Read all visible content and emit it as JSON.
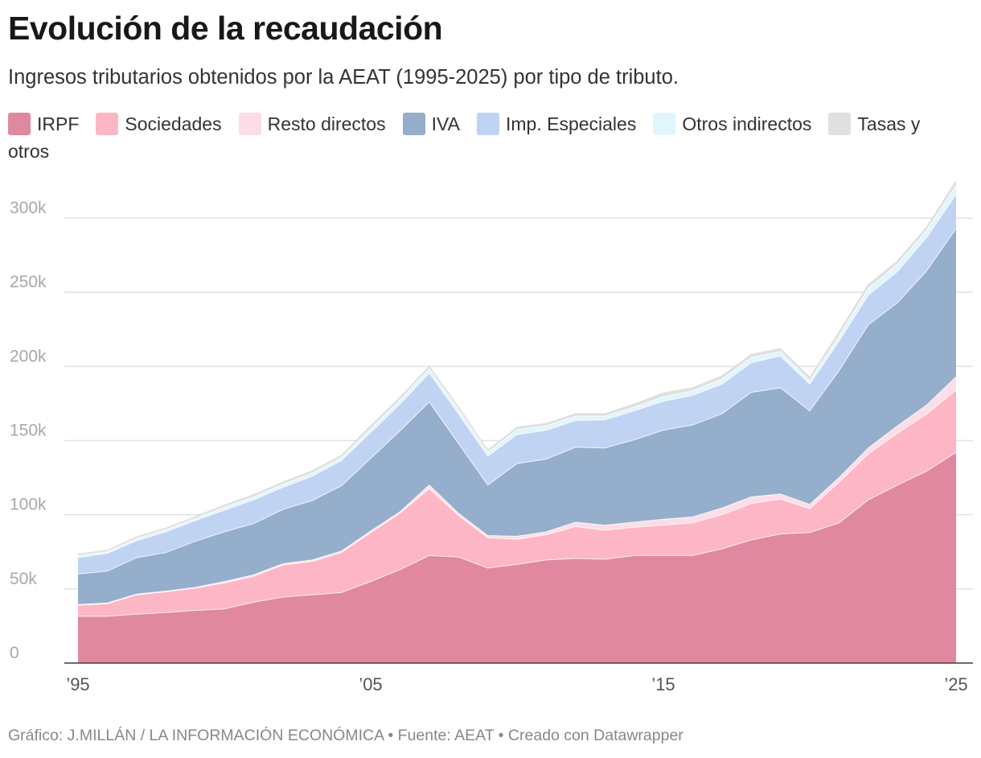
{
  "chart_data": {
    "type": "area",
    "stacked": true,
    "title": "Evolución de la recaudación",
    "subtitle": "Ingresos tributarios obtenidos por la AEAT (1995-2025) por tipo de tributo.",
    "x": [
      1995,
      1996,
      1997,
      1998,
      1999,
      2000,
      2001,
      2002,
      2003,
      2004,
      2005,
      2006,
      2007,
      2008,
      2009,
      2010,
      2011,
      2012,
      2013,
      2014,
      2015,
      2016,
      2017,
      2018,
      2019,
      2020,
      2021,
      2022,
      2023,
      2024,
      2025
    ],
    "x_ticks": [
      {
        "value": 1995,
        "label": "’95"
      },
      {
        "value": 2005,
        "label": "’05"
      },
      {
        "value": 2015,
        "label": "’15"
      },
      {
        "value": 2025,
        "label": "’25"
      }
    ],
    "y_ticks": [
      {
        "value": 0,
        "label": "0"
      },
      {
        "value": 50000,
        "label": "50k"
      },
      {
        "value": 100000,
        "label": "100k"
      },
      {
        "value": 150000,
        "label": "150k"
      },
      {
        "value": 200000,
        "label": "200k"
      },
      {
        "value": 250000,
        "label": "250k"
      },
      {
        "value": 300000,
        "label": "300k"
      }
    ],
    "ylim": [
      0,
      330000
    ],
    "xlim": [
      1995,
      2025
    ],
    "grid": true,
    "legend_position": "top",
    "series": [
      {
        "name": "IRPF",
        "color": "#e0889f",
        "values": [
          31500,
          31500,
          33000,
          34000,
          35500,
          36500,
          41000,
          44500,
          46000,
          47500,
          55000,
          63000,
          72500,
          71500,
          64000,
          66500,
          69500,
          70500,
          70000,
          72500,
          72500,
          72500,
          77000,
          83000,
          87000,
          88000,
          94500,
          110000,
          120000,
          129500,
          142000
        ]
      },
      {
        "name": "Sociedades",
        "color": "#fdb6c5",
        "values": [
          7500,
          8500,
          13000,
          14000,
          15000,
          17500,
          17500,
          21500,
          22500,
          27000,
          33000,
          38000,
          45000,
          28000,
          20500,
          17000,
          17000,
          21500,
          19500,
          19000,
          20500,
          22000,
          23000,
          24500,
          23500,
          16000,
          27500,
          31000,
          35000,
          38500,
          42000
        ]
      },
      {
        "name": "Resto directos",
        "color": "#fddde7",
        "values": [
          500,
          500,
          500,
          500,
          500,
          1000,
          1000,
          1000,
          1000,
          1000,
          1000,
          1000,
          2500,
          1500,
          1500,
          2000,
          2000,
          3000,
          3500,
          3500,
          4000,
          4000,
          4500,
          4500,
          3500,
          3000,
          3000,
          4000,
          5000,
          6000,
          9000
        ]
      },
      {
        "name": "IVA",
        "color": "#94aecb",
        "values": [
          20500,
          21500,
          24500,
          26000,
          31000,
          33500,
          34500,
          36500,
          40000,
          44000,
          49000,
          54500,
          56000,
          47000,
          34000,
          49000,
          49000,
          50500,
          52000,
          55500,
          60000,
          62000,
          63500,
          70500,
          71500,
          63000,
          72000,
          83000,
          83000,
          90500,
          100000
        ]
      },
      {
        "name": "Imp. Especiales",
        "color": "#c0d3f2",
        "values": [
          11000,
          12000,
          11500,
          14000,
          14000,
          14500,
          16000,
          15000,
          16500,
          17000,
          17500,
          18000,
          19500,
          20000,
          19500,
          19500,
          19500,
          18000,
          19000,
          19500,
          19500,
          20000,
          20000,
          20000,
          21500,
          18000,
          20000,
          20000,
          21000,
          22500,
          23000
        ]
      },
      {
        "name": "Otros indirectos",
        "color": "#e1f5fc",
        "values": [
          1500,
          1000,
          1500,
          1500,
          1500,
          2000,
          2000,
          2000,
          2000,
          2000,
          2500,
          3000,
          3000,
          3000,
          2500,
          3500,
          3000,
          3000,
          2500,
          2500,
          3000,
          3000,
          3500,
          3500,
          3000,
          2500,
          3500,
          4500,
          5000,
          5000,
          6000
        ]
      },
      {
        "name": "Tasas y otros",
        "color": "#e0e0e0",
        "values": [
          1000,
          1000,
          1000,
          1000,
          1000,
          1500,
          1500,
          1500,
          1500,
          1500,
          2000,
          1500,
          1500,
          1500,
          1500,
          1500,
          1500,
          1500,
          1500,
          2000,
          2500,
          2000,
          2000,
          2000,
          2000,
          2000,
          2500,
          2500,
          2000,
          2000,
          3000
        ]
      }
    ]
  },
  "footer": "Gráfico: J.MILLÁN / LA INFORMACIÓN ECONÓMICA • Fuente: AEAT • Creado con Datawrapper"
}
